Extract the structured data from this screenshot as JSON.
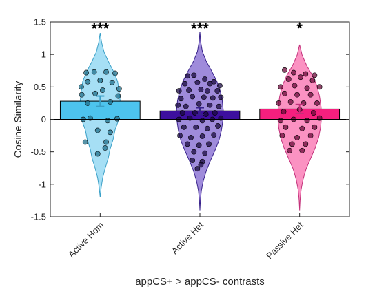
{
  "chart_data": {
    "type": "violin-bar",
    "xlabel": "appCS+ > appCS- contrasts",
    "ylabel": "Cosine Similarity",
    "ylim": [
      -1.5,
      1.5
    ],
    "yticks": [
      "-1.5",
      "-1",
      "-0.5",
      "0",
      "0.5",
      "1",
      "1.5"
    ],
    "grid": false,
    "categories": [
      "Active Hom",
      "Active Het",
      "Passive Het"
    ],
    "series": [
      {
        "name": "Active Hom",
        "mean": 0.28,
        "sem": 0.08,
        "significance": "***",
        "violin_color": "#a6dff5",
        "edge_color": "#3a9fc6",
        "bar_color": "#4dc4ee",
        "dot_color": "#1f6f8a",
        "violin_range": [
          -1.2,
          1.33
        ],
        "violin_widths": [
          0,
          0.02,
          0.05,
          0.1,
          0.16,
          0.2,
          0.26,
          0.3,
          0.37,
          0.39,
          0.4,
          0.38,
          0.35,
          0.27,
          0.17,
          0.08,
          0.03,
          0
        ],
        "points": [
          {
            "x": -0.28,
            "y": 0.72
          },
          {
            "x": -0.12,
            "y": 0.73
          },
          {
            "x": 0.12,
            "y": 0.73
          },
          {
            "x": 0.3,
            "y": 0.71
          },
          {
            "x": -0.25,
            "y": 0.58
          },
          {
            "x": 0.0,
            "y": 0.6
          },
          {
            "x": 0.24,
            "y": 0.57
          },
          {
            "x": -0.38,
            "y": 0.5
          },
          {
            "x": 0.05,
            "y": 0.45
          },
          {
            "x": 0.38,
            "y": 0.47
          },
          {
            "x": -0.37,
            "y": 0.38
          },
          {
            "x": -0.1,
            "y": 0.4
          },
          {
            "x": 0.36,
            "y": 0.36
          },
          {
            "x": -0.25,
            "y": 0.25
          },
          {
            "x": 0.2,
            "y": 0.27
          },
          {
            "x": -0.34,
            "y": 0.0
          },
          {
            "x": -0.2,
            "y": 0.02
          },
          {
            "x": 0.15,
            "y": -0.02
          },
          {
            "x": 0.34,
            "y": 0.01
          },
          {
            "x": -0.05,
            "y": -0.17
          },
          {
            "x": 0.2,
            "y": -0.2
          },
          {
            "x": -0.3,
            "y": -0.35
          },
          {
            "x": 0.12,
            "y": -0.35
          },
          {
            "x": -0.05,
            "y": -0.53
          },
          {
            "x": 0.1,
            "y": -0.44
          }
        ]
      },
      {
        "name": "Active Het",
        "mean": 0.13,
        "sem": 0.05,
        "significance": "***",
        "violin_color": "#9f8bdb",
        "edge_color": "#38228a",
        "bar_color": "#3d0f9e",
        "dot_color": "#1a0a40",
        "violin_range": [
          -1.4,
          1.35
        ],
        "violin_widths": [
          0,
          0.01,
          0.03,
          0.07,
          0.13,
          0.21,
          0.3,
          0.38,
          0.43,
          0.46,
          0.47,
          0.45,
          0.41,
          0.34,
          0.24,
          0.13,
          0.05,
          0.015,
          0
        ],
        "points": [
          {
            "x": -0.25,
            "y": 0.67
          },
          {
            "x": -0.12,
            "y": 0.68
          },
          {
            "x": 0.1,
            "y": 0.62
          },
          {
            "x": 0.28,
            "y": 0.58
          },
          {
            "x": -0.3,
            "y": 0.55
          },
          {
            "x": -0.05,
            "y": 0.57
          },
          {
            "x": 0.2,
            "y": 0.55
          },
          {
            "x": 0.4,
            "y": 0.52
          },
          {
            "x": -0.42,
            "y": 0.44
          },
          {
            "x": -0.22,
            "y": 0.45
          },
          {
            "x": 0.02,
            "y": 0.46
          },
          {
            "x": 0.15,
            "y": 0.44
          },
          {
            "x": 0.35,
            "y": 0.44
          },
          {
            "x": -0.38,
            "y": 0.32
          },
          {
            "x": -0.15,
            "y": 0.35
          },
          {
            "x": 0.08,
            "y": 0.34
          },
          {
            "x": 0.26,
            "y": 0.33
          },
          {
            "x": 0.42,
            "y": 0.34
          },
          {
            "x": -0.44,
            "y": 0.22
          },
          {
            "x": -0.28,
            "y": 0.2
          },
          {
            "x": -0.02,
            "y": 0.24
          },
          {
            "x": 0.2,
            "y": 0.22
          },
          {
            "x": 0.38,
            "y": 0.2
          },
          {
            "x": -0.35,
            "y": 0.1
          },
          {
            "x": -0.1,
            "y": 0.1
          },
          {
            "x": 0.12,
            "y": 0.08
          },
          {
            "x": 0.3,
            "y": 0.1
          },
          {
            "x": -0.42,
            "y": 0.0
          },
          {
            "x": -0.2,
            "y": 0.02
          },
          {
            "x": 0.05,
            "y": -0.02
          },
          {
            "x": 0.25,
            "y": 0.0
          },
          {
            "x": 0.42,
            "y": 0.02
          },
          {
            "x": -0.32,
            "y": -0.12
          },
          {
            "x": -0.08,
            "y": -0.12
          },
          {
            "x": 0.15,
            "y": -0.14
          },
          {
            "x": 0.36,
            "y": -0.1
          },
          {
            "x": -0.4,
            "y": -0.25
          },
          {
            "x": -0.18,
            "y": -0.28
          },
          {
            "x": 0.05,
            "y": -0.26
          },
          {
            "x": 0.28,
            "y": -0.24
          },
          {
            "x": -0.25,
            "y": -0.38
          },
          {
            "x": -0.02,
            "y": -0.4
          },
          {
            "x": 0.18,
            "y": -0.38
          },
          {
            "x": -0.12,
            "y": -0.5
          },
          {
            "x": 0.1,
            "y": -0.52
          },
          {
            "x": -0.15,
            "y": -0.63
          },
          {
            "x": 0.05,
            "y": -0.65
          },
          {
            "x": -0.05,
            "y": -0.76
          },
          {
            "x": 0.02,
            "y": -0.7
          }
        ]
      },
      {
        "name": "Passive Het",
        "mean": 0.16,
        "sem": 0.07,
        "significance": "*",
        "violin_color": "#fb92c2",
        "edge_color": "#c2317a",
        "bar_color": "#f51f7e",
        "dot_color": "#6b0a3a",
        "violin_range": [
          -1.4,
          1.15
        ],
        "violin_widths": [
          0,
          0.01,
          0.03,
          0.07,
          0.13,
          0.22,
          0.31,
          0.38,
          0.42,
          0.44,
          0.43,
          0.4,
          0.35,
          0.26,
          0.14,
          0.05,
          0
        ],
        "points": [
          {
            "x": -0.3,
            "y": 0.76
          },
          {
            "x": -0.12,
            "y": 0.72
          },
          {
            "x": 0.12,
            "y": 0.7
          },
          {
            "x": 0.3,
            "y": 0.68
          },
          {
            "x": -0.22,
            "y": 0.62
          },
          {
            "x": 0.02,
            "y": 0.65
          },
          {
            "x": 0.26,
            "y": 0.6
          },
          {
            "x": -0.38,
            "y": 0.5
          },
          {
            "x": -0.1,
            "y": 0.52
          },
          {
            "x": 0.15,
            "y": 0.48
          },
          {
            "x": 0.4,
            "y": 0.5
          },
          {
            "x": -0.3,
            "y": 0.4
          },
          {
            "x": -0.05,
            "y": 0.38
          },
          {
            "x": 0.22,
            "y": 0.38
          },
          {
            "x": -0.42,
            "y": 0.25
          },
          {
            "x": -0.18,
            "y": 0.27
          },
          {
            "x": 0.08,
            "y": 0.25
          },
          {
            "x": 0.35,
            "y": 0.25
          },
          {
            "x": -0.32,
            "y": 0.12
          },
          {
            "x": 0.0,
            "y": 0.15
          },
          {
            "x": 0.28,
            "y": 0.1
          },
          {
            "x": -0.38,
            "y": -0.02
          },
          {
            "x": -0.12,
            "y": 0.0
          },
          {
            "x": 0.15,
            "y": -0.02
          },
          {
            "x": 0.4,
            "y": 0.02
          },
          {
            "x": -0.28,
            "y": -0.12
          },
          {
            "x": 0.05,
            "y": -0.14
          },
          {
            "x": 0.3,
            "y": -0.12
          },
          {
            "x": -0.35,
            "y": -0.25
          },
          {
            "x": -0.05,
            "y": -0.28
          },
          {
            "x": 0.22,
            "y": -0.25
          },
          {
            "x": -0.15,
            "y": -0.38
          },
          {
            "x": 0.12,
            "y": -0.38
          },
          {
            "x": -0.2,
            "y": -0.48
          },
          {
            "x": 0.05,
            "y": -0.48
          }
        ]
      }
    ]
  }
}
